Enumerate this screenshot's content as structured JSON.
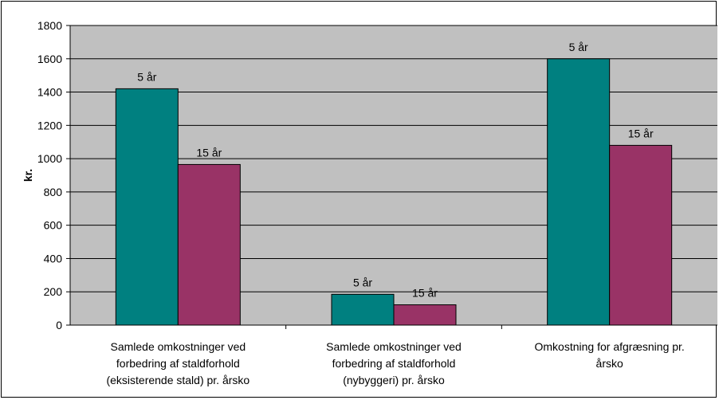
{
  "chart_data": {
    "type": "bar",
    "ylabel": "kr.",
    "ylim": [
      0,
      1800
    ],
    "yticks": [
      0,
      200,
      400,
      600,
      800,
      1000,
      1200,
      1400,
      1600,
      1800
    ],
    "grid": true,
    "legend": "none",
    "categories": [
      [
        "Samlede omkostninger ved",
        "forbedring af staldforhold",
        "(eksisterende stald) pr. årsko"
      ],
      [
        "Samlede omkostninger ved",
        "forbedring af staldforhold",
        "(nybyggeri) pr. årsko"
      ],
      [
        "Omkostning for afgræsning pr.",
        "årsko"
      ]
    ],
    "series": [
      {
        "label": "5 år",
        "color": "#008080",
        "values": [
          1420,
          185,
          1600
        ]
      },
      {
        "label": "15 år",
        "color": "#993366",
        "values": [
          965,
          122,
          1080
        ]
      }
    ],
    "colors": {
      "plot_bg": "#c0c0c0",
      "gridline": "#000000"
    }
  }
}
